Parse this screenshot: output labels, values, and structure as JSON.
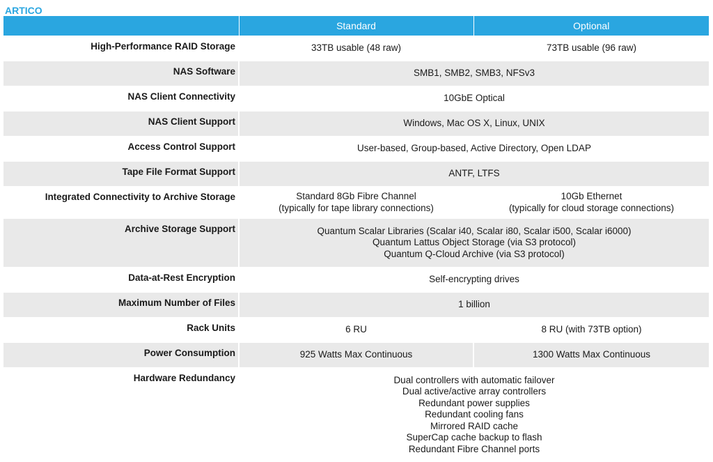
{
  "brand": "ARTICO",
  "header": {
    "standard": "Standard",
    "optional": "Optional"
  },
  "rows": {
    "raid": {
      "label": "High-Performance RAID Storage",
      "standard": "33TB usable (48 raw)",
      "optional": "73TB usable (96 raw)"
    },
    "nas_software": {
      "label": "NAS Software",
      "value": "SMB1, SMB2, SMB3, NFSv3"
    },
    "nas_connectivity": {
      "label": "NAS Client Connectivity",
      "value": "10GbE Optical"
    },
    "nas_support": {
      "label": "NAS Client Support",
      "value": "Windows, Mac OS X, Linux, UNIX"
    },
    "access_control": {
      "label": "Access Control Support",
      "value": "User-based, Group-based, Active Directory, Open LDAP"
    },
    "tape_format": {
      "label": "Tape File Format Support",
      "value": "ANTF, LTFS"
    },
    "integrated": {
      "label": "Integrated Connectivity to Archive Storage",
      "standard": [
        "Standard 8Gb Fibre Channel",
        "(typically for tape library connections)"
      ],
      "optional": [
        "10Gb Ethernet",
        "(typically for cloud storage connections)"
      ]
    },
    "archive": {
      "label": "Archive Storage Support",
      "lines": [
        "Quantum Scalar Libraries (Scalar i40, Scalar i80, Scalar i500, Scalar i6000)",
        "Quantum Lattus Object Storage (via S3 protocol)",
        "Quantum Q-Cloud Archive (via S3 protocol)"
      ]
    },
    "encryption": {
      "label": "Data-at-Rest Encryption",
      "value": "Self-encrypting drives"
    },
    "max_files": {
      "label": "Maximum Number of Files",
      "value": "1 billion"
    },
    "rack_units": {
      "label": "Rack Units",
      "standard": "6 RU",
      "optional": "8 RU (with 73TB option)"
    },
    "power": {
      "label": "Power Consumption",
      "standard": "925 Watts Max Continuous",
      "optional": "1300 Watts Max Continuous"
    },
    "redundancy": {
      "label": "Hardware Redundancy",
      "lines": [
        "Dual controllers with automatic failover",
        "Dual active/active array controllers",
        "Redundant power supplies",
        "Redundant cooling fans",
        "Mirrored RAID cache",
        "SuperCap cache backup to flash",
        "Redundant Fibre Channel ports"
      ]
    }
  },
  "colors": {
    "accent": "#2aa6e0",
    "row_alt": "#e9e9e9"
  }
}
